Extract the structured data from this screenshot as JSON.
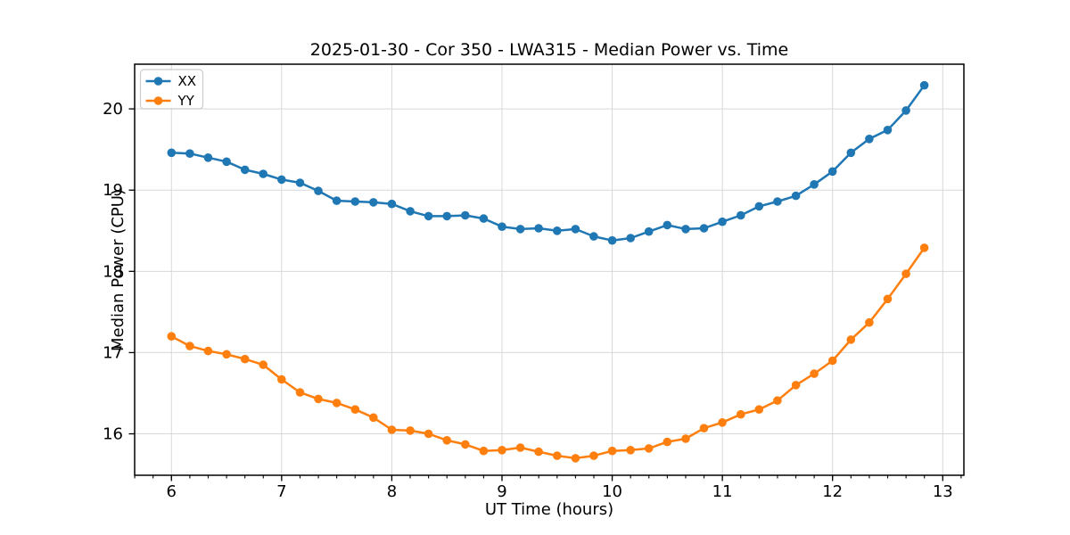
{
  "chart_data": {
    "type": "line",
    "title": "2025-01-30 - Cor 350 - LWA315 - Median Power vs. Time",
    "xlabel": "UT Time (hours)",
    "ylabel": "Median Power (CPU)",
    "xlim": [
      5.666,
      13.192
    ],
    "ylim": [
      15.49,
      20.55
    ],
    "xticks": [
      6,
      7,
      8,
      9,
      10,
      11,
      12,
      13
    ],
    "yticks": [
      16,
      17,
      18,
      19,
      20
    ],
    "x_minor_tick_step": 0.16667,
    "grid": true,
    "legend_position": "upper left",
    "x": [
      6.0,
      6.167,
      6.333,
      6.5,
      6.667,
      6.833,
      7.0,
      7.167,
      7.333,
      7.5,
      7.667,
      7.833,
      8.0,
      8.167,
      8.333,
      8.5,
      8.667,
      8.833,
      9.0,
      9.167,
      9.333,
      9.5,
      9.667,
      9.833,
      10.0,
      10.167,
      10.333,
      10.5,
      10.667,
      10.833,
      11.0,
      11.167,
      11.333,
      11.5,
      11.667,
      11.833,
      12.0,
      12.167,
      12.333,
      12.5,
      12.667,
      12.833
    ],
    "series": [
      {
        "name": "XX",
        "color": "#1f77b4",
        "values": [
          19.46,
          19.45,
          19.4,
          19.35,
          19.25,
          19.2,
          19.13,
          19.09,
          18.99,
          18.87,
          18.86,
          18.85,
          18.83,
          18.74,
          18.68,
          18.68,
          18.69,
          18.65,
          18.55,
          18.52,
          18.53,
          18.5,
          18.52,
          18.43,
          18.38,
          18.41,
          18.49,
          18.57,
          18.52,
          18.53,
          18.61,
          18.69,
          18.8,
          18.86,
          18.93,
          19.07,
          19.23,
          19.46,
          19.63,
          19.74,
          19.98,
          20.29
        ]
      },
      {
        "name": "YY",
        "color": "#ff7f0e",
        "values": [
          17.2,
          17.08,
          17.02,
          16.98,
          16.92,
          16.85,
          16.67,
          16.51,
          16.43,
          16.38,
          16.3,
          16.2,
          16.05,
          16.04,
          16.0,
          15.92,
          15.87,
          15.79,
          15.8,
          15.83,
          15.78,
          15.73,
          15.7,
          15.73,
          15.79,
          15.8,
          15.82,
          15.9,
          15.94,
          16.07,
          16.14,
          16.24,
          16.3,
          16.41,
          16.6,
          16.74,
          16.9,
          17.16,
          17.37,
          17.66,
          17.97,
          18.29
        ]
      }
    ]
  },
  "colors": {
    "background": "#ffffff",
    "grid": "#d8d8d8",
    "spine": "#000000",
    "tick": "#000000",
    "legend_border": "#cccccc",
    "legend_background": "#ffffff"
  }
}
